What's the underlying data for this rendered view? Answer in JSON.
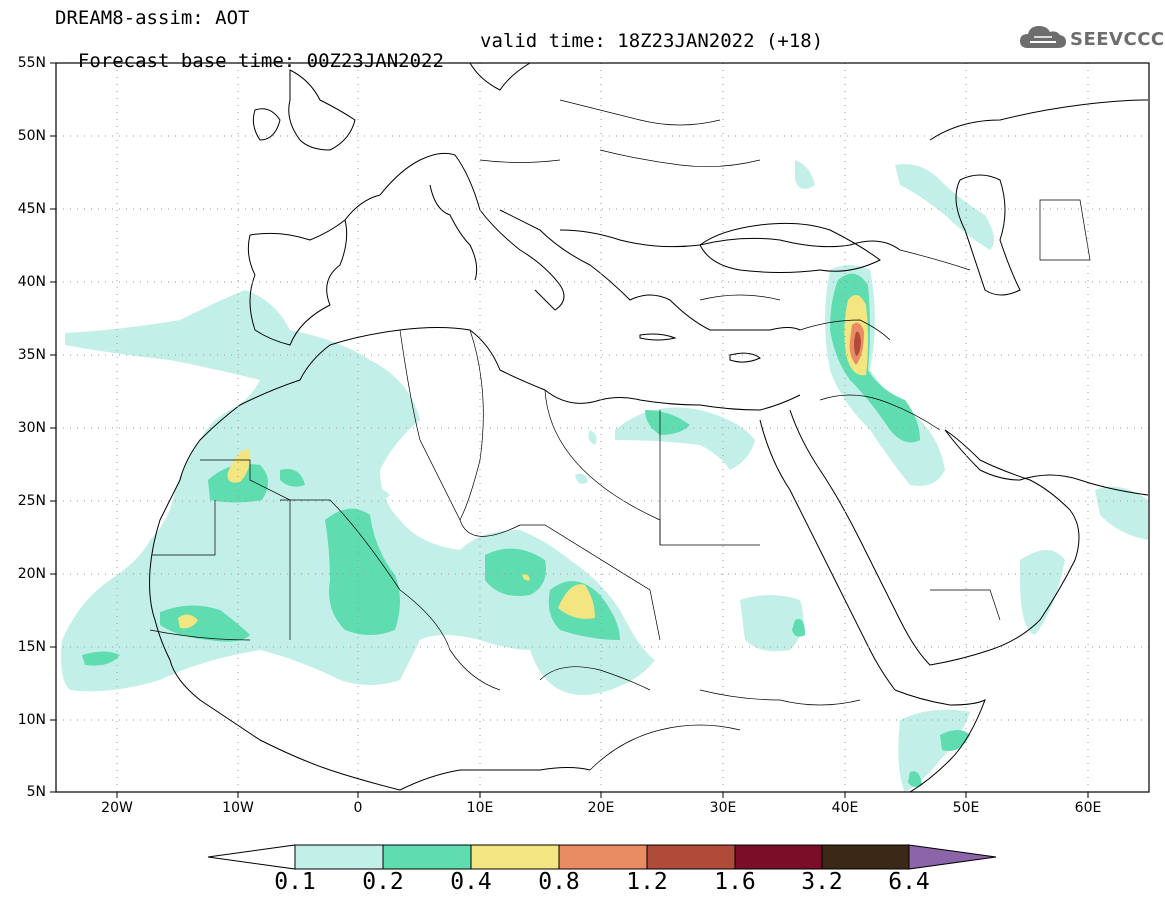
{
  "header": {
    "title": "DREAM8-assim: AOT",
    "base_time": "Forecast base time: 00Z23JAN2022",
    "valid_time": "valid time: 18Z23JAN2022 (+18)"
  },
  "logo": {
    "text": "SEEVCCC",
    "icon": "cloud-logo-icon",
    "color": "#6d6d6d"
  },
  "map": {
    "lat_labels": [
      "55N",
      "50N",
      "45N",
      "40N",
      "35N",
      "30N",
      "25N",
      "20N",
      "15N",
      "10N",
      "5N"
    ],
    "lon_labels": [
      "20W",
      "10W",
      "0",
      "10E",
      "20E",
      "30E",
      "40E",
      "50E",
      "60E"
    ],
    "extent": {
      "lon_min": -25,
      "lon_max": 65,
      "lat_min": 5,
      "lat_max": 55
    }
  },
  "colorbar": {
    "colors": [
      "#ffffff",
      "#c2f0e8",
      "#5fdcb0",
      "#f3e680",
      "#e98c64",
      "#b04a39",
      "#7a0d27",
      "#3c2817",
      "#8c64a8"
    ],
    "labels": [
      "0.1",
      "0.2",
      "0.4",
      "0.8",
      "1.2",
      "1.6",
      "3.2",
      "6.4"
    ]
  }
}
